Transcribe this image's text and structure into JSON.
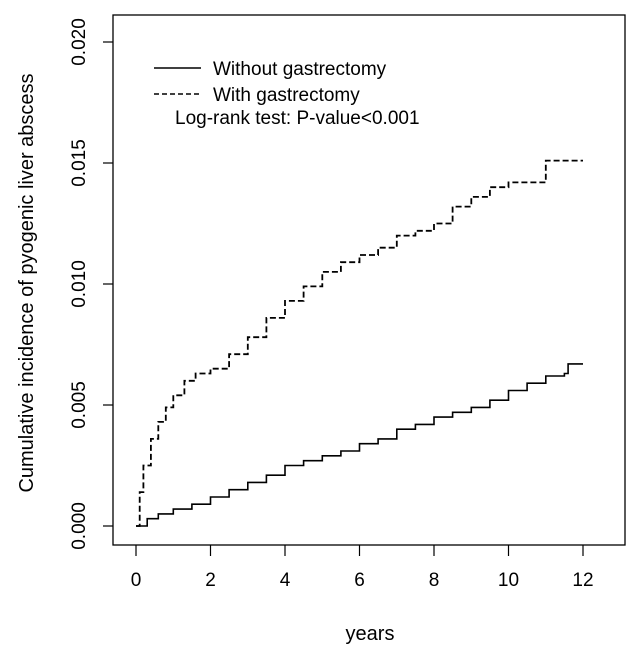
{
  "chart_data": {
    "type": "line",
    "title": "",
    "xlabel": "years",
    "ylabel": "Cumulative incidence of pyogenic liver abscess",
    "xlim": [
      0,
      12
    ],
    "ylim": [
      0,
      0.02
    ],
    "x_ticks": [
      "0",
      "2",
      "4",
      "6",
      "8",
      "10",
      "12"
    ],
    "y_ticks": [
      "0.000",
      "0.005",
      "0.010",
      "0.015",
      "0.020"
    ],
    "grid": false,
    "legend_position": "top-left",
    "annotation": "Log-rank test: P-value<0.001",
    "series": [
      {
        "name": "Without gastrectomy",
        "line_style": "solid",
        "color": "#000000",
        "x": [
          0,
          0.3,
          0.6,
          1.0,
          1.5,
          2.0,
          2.5,
          3.0,
          3.5,
          4.0,
          4.5,
          5.0,
          5.5,
          6.0,
          6.5,
          7.0,
          7.5,
          8.0,
          8.5,
          9.0,
          9.5,
          10.0,
          10.5,
          11.0,
          11.5,
          11.6,
          12.0
        ],
        "y": [
          0.0,
          0.0003,
          0.0005,
          0.0007,
          0.0009,
          0.0012,
          0.0015,
          0.0018,
          0.0021,
          0.0025,
          0.0027,
          0.0029,
          0.0031,
          0.0034,
          0.0036,
          0.004,
          0.0042,
          0.0045,
          0.0047,
          0.0049,
          0.0052,
          0.0056,
          0.0059,
          0.0062,
          0.0063,
          0.0067,
          0.0067
        ]
      },
      {
        "name": "With gastrectomy",
        "line_style": "dashed",
        "color": "#000000",
        "x": [
          0,
          0.1,
          0.2,
          0.4,
          0.6,
          0.8,
          1.0,
          1.3,
          1.6,
          2.0,
          2.5,
          3.0,
          3.5,
          4.0,
          4.5,
          5.0,
          5.5,
          6.0,
          6.5,
          7.0,
          7.5,
          8.0,
          8.5,
          9.0,
          9.5,
          10.0,
          10.5,
          10.9,
          11.0,
          12.0
        ],
        "y": [
          0.0,
          0.0014,
          0.0025,
          0.0036,
          0.0043,
          0.0049,
          0.0054,
          0.006,
          0.0063,
          0.0065,
          0.0071,
          0.0078,
          0.0086,
          0.0093,
          0.0099,
          0.0105,
          0.0109,
          0.0112,
          0.0115,
          0.012,
          0.0122,
          0.0125,
          0.0132,
          0.0136,
          0.014,
          0.0142,
          0.0142,
          0.0142,
          0.0151,
          0.0151
        ]
      }
    ]
  }
}
